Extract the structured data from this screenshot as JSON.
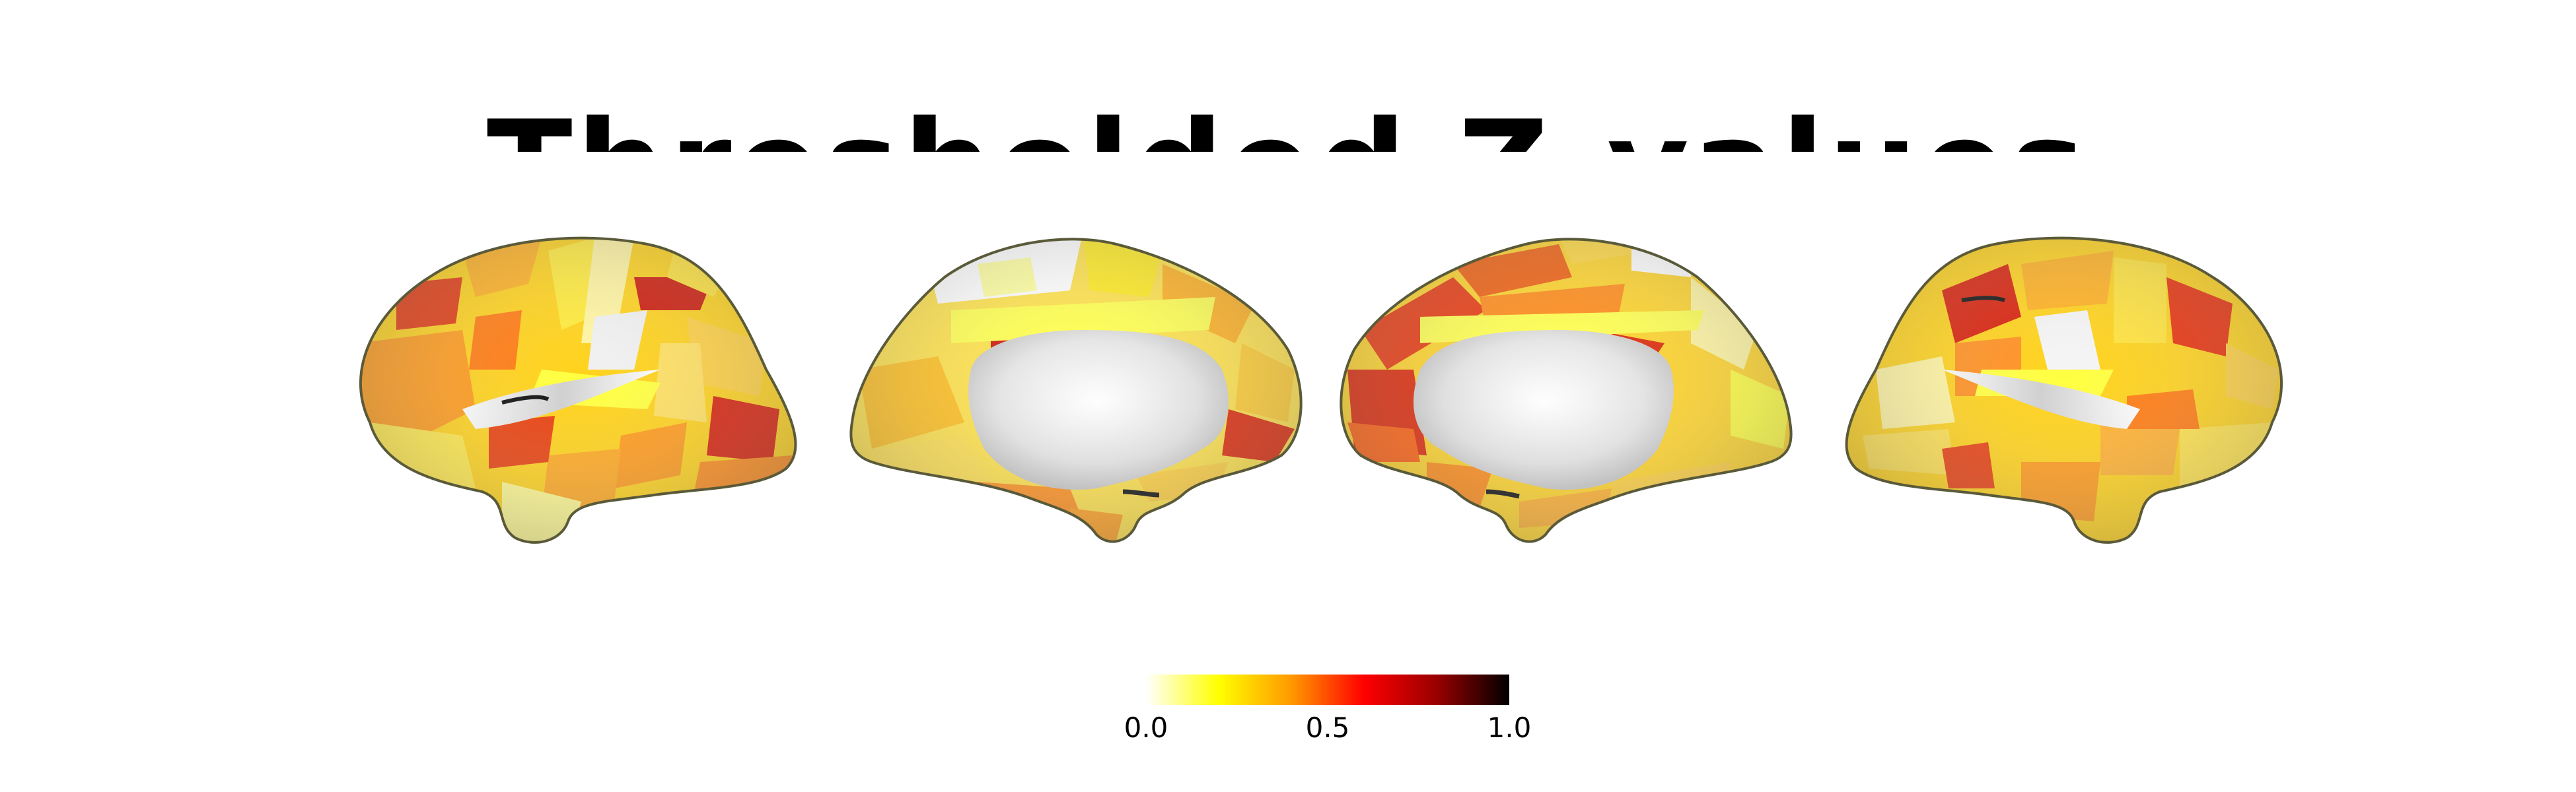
{
  "figure": {
    "title": "Thresholded Z-values",
    "views": [
      "left-lateral",
      "left-medial",
      "right-medial",
      "right-lateral"
    ],
    "shading_colors": {
      "background": "#ffffff",
      "cortex": "#e8e8e8",
      "cortex_shadow": "#b8b8b8",
      "outline": "#5a5a3a"
    }
  },
  "colorbar": {
    "colormap": "hot_r",
    "stops": [
      "#ffffff",
      "#ffff00",
      "#ff9900",
      "#ff0000",
      "#990000",
      "#000000"
    ],
    "ticks": [
      "0.0",
      "0.5",
      "1.0"
    ],
    "range": [
      0.0,
      1.0
    ]
  }
}
